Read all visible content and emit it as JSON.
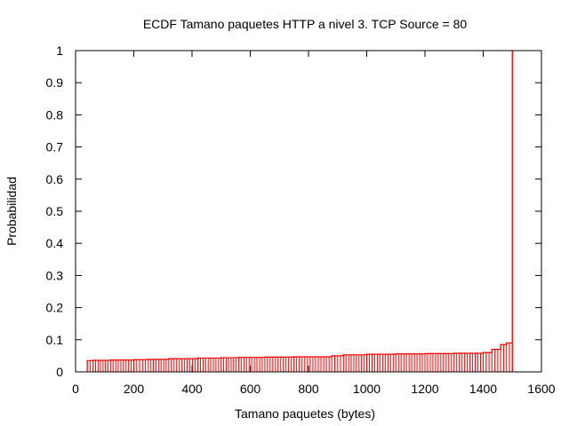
{
  "chart_data": {
    "type": "line",
    "title": "ECDF Tamano paquetes HTTP a nivel 3. TCP Source = 80",
    "xlabel": "Tamano paquetes (bytes)",
    "ylabel": "Probabilidad",
    "xlim": [
      0,
      1600
    ],
    "ylim": [
      0,
      1
    ],
    "xticks": [
      0,
      200,
      400,
      600,
      800,
      1000,
      1200,
      1400,
      1600
    ],
    "yticks": [
      0,
      0.1,
      0.2,
      0.3,
      0.4,
      0.5,
      0.6,
      0.7,
      0.8,
      0.9,
      1
    ],
    "xtick_labels": [
      "0",
      "200",
      "400",
      "600",
      "800",
      "1000",
      "1200",
      "1400",
      "1600"
    ],
    "ytick_labels": [
      "0",
      "0.1",
      "0.2",
      "0.3",
      "0.4",
      "0.5",
      "0.6",
      "0.7",
      "0.8",
      "0.9",
      "1"
    ],
    "grid": false,
    "series": [
      {
        "color": "#ff0000",
        "x": [
          40,
          60,
          120,
          200,
          250,
          320,
          420,
          500,
          560,
          650,
          750,
          880,
          920,
          1000,
          1100,
          1200,
          1300,
          1400,
          1430,
          1460,
          1480,
          1500
        ],
        "y": [
          0.035,
          0.036,
          0.037,
          0.038,
          0.039,
          0.041,
          0.043,
          0.044,
          0.045,
          0.046,
          0.047,
          0.05,
          0.053,
          0.055,
          0.056,
          0.057,
          0.058,
          0.06,
          0.07,
          0.085,
          0.09,
          1.0
        ]
      }
    ]
  }
}
